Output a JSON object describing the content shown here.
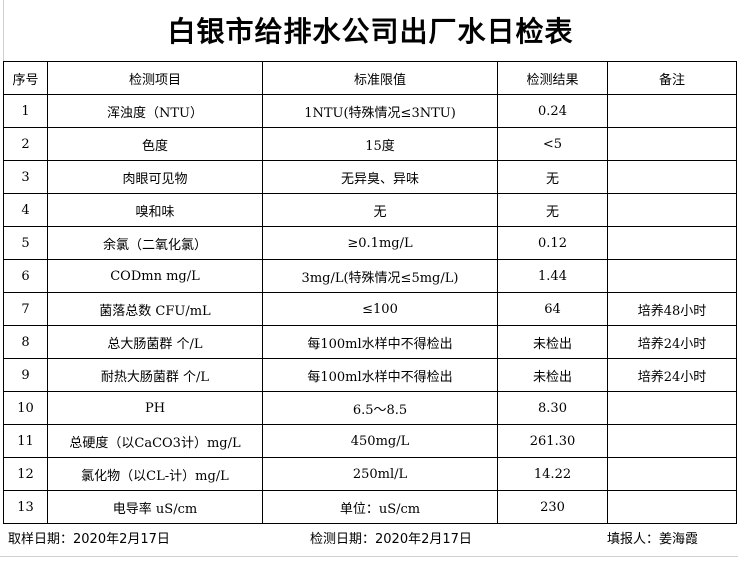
{
  "title": "白银市给排水公司出厂水日检表",
  "headers": [
    "序号",
    "检测项目",
    "标准限值",
    "检测结果",
    "备注"
  ],
  "rows": [
    [
      "1",
      "浑浊度（NTU）",
      "1NTU(特殊情况≤3NTU)",
      "0.24",
      ""
    ],
    [
      "2",
      "色度",
      "15度",
      "<5",
      ""
    ],
    [
      "3",
      "肉眼可见物",
      "无异臭、异味",
      "无",
      ""
    ],
    [
      "4",
      "嗅和味",
      "无",
      "无",
      ""
    ],
    [
      "5",
      "余氯（二氧化氯）",
      "≥0.1mg/L",
      "0.12",
      ""
    ],
    [
      "6",
      "CODmn mg/L",
      "3mg/L(特殊情况≤5mg/L)",
      "1.44",
      ""
    ],
    [
      "7",
      "菌落总数  CFU/mL",
      "≤100",
      "64",
      "培养48小时"
    ],
    [
      "8",
      "总大肠菌群 个/L",
      "每100ml水样中不得检出",
      "未检出",
      "培养24小时"
    ],
    [
      "9",
      "耐热大肠菌群 个/L",
      "每100ml水样中不得检出",
      "未检出",
      "培养24小时"
    ],
    [
      "10",
      "PH",
      "6.5～8.5",
      "8.30",
      ""
    ],
    [
      "11",
      "总硬度（以CaCO3计）mg/L",
      "450mg/L",
      "261.30",
      ""
    ],
    [
      "12",
      "氯化物（以CL-计）mg/L",
      "250ml/L",
      "14.22",
      ""
    ],
    [
      "13",
      "电导率 uS/cm",
      "单位：uS/cm",
      "230",
      ""
    ]
  ],
  "footer": {
    "sampling_date": "取样日期：2020年2月17日",
    "test_date": "检测日期：2020年2月17日",
    "reporter": "填报人：姜海霞"
  }
}
